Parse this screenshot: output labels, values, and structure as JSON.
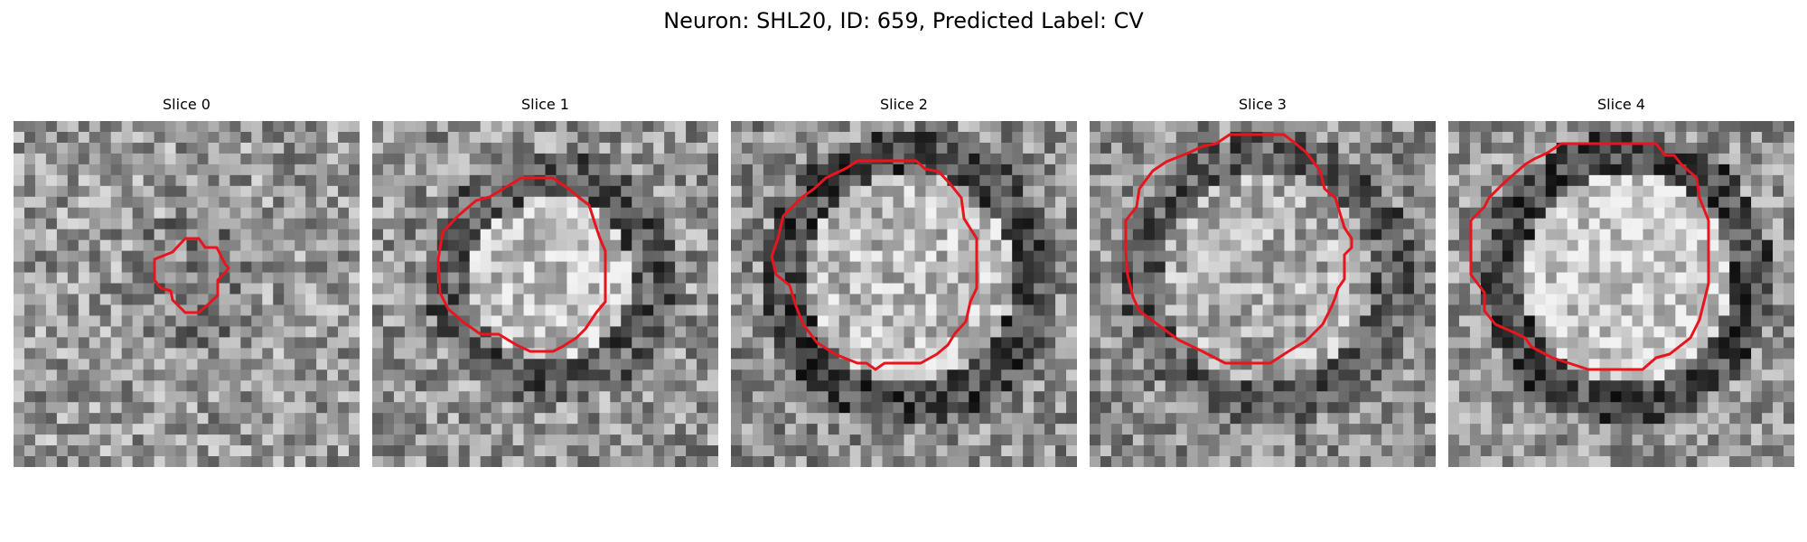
{
  "figure": {
    "title": "Neuron: SHL20, ID: 659, Predicted Label: CV"
  },
  "contour_color": "#e8141e",
  "grid_size": 32,
  "panels": [
    {
      "title": "Slice 0",
      "seed": 11,
      "base": 0.6,
      "noise": 0.26,
      "ring_dark": 0.1,
      "center_bright": -0.06
    },
    {
      "title": "Slice 1",
      "seed": 29,
      "base": 0.58,
      "noise": 0.26,
      "ring_dark": 0.22,
      "center_bright": 0.2
    },
    {
      "title": "Slice 2",
      "seed": 47,
      "base": 0.56,
      "noise": 0.25,
      "ring_dark": 0.28,
      "center_bright": 0.18
    },
    {
      "title": "Slice 3",
      "seed": 71,
      "base": 0.55,
      "noise": 0.25,
      "ring_dark": 0.18,
      "center_bright": 0.12
    },
    {
      "title": "Slice 4",
      "seed": 97,
      "base": 0.58,
      "noise": 0.24,
      "ring_dark": 0.3,
      "center_bright": 0.22
    }
  ]
}
